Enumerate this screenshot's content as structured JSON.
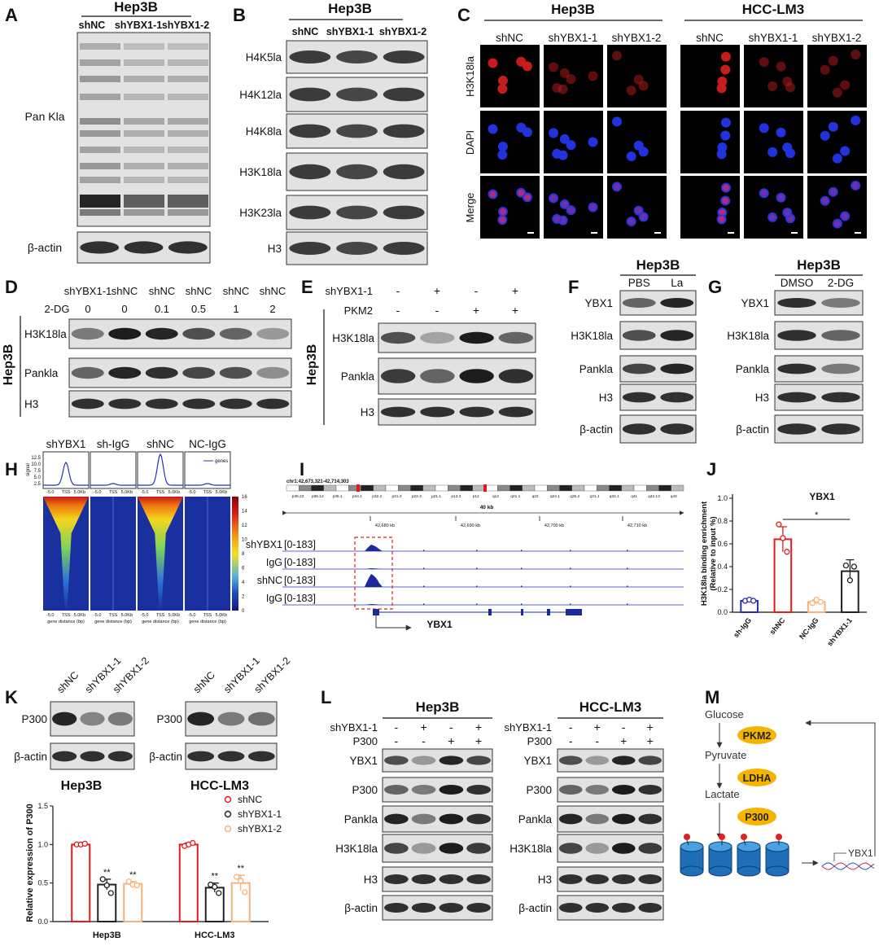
{
  "figure": {
    "A": {
      "label": "A",
      "cell": "Hep3B",
      "lanes": [
        "shNC",
        "shYBX1-1",
        "shYBX1-2"
      ],
      "rows": [
        "Pan Kla",
        "β-actin"
      ]
    },
    "B": {
      "label": "B",
      "cell": "Hep3B",
      "lanes": [
        "shNC",
        "shYBX1-1",
        "shYBX1-2"
      ],
      "rows": [
        "H4K5la",
        "H4K12la",
        "H4K8la",
        "H3K18la",
        "H3K23la",
        "H3"
      ]
    },
    "C": {
      "label": "C",
      "groups": [
        {
          "cell": "Hep3B",
          "lanes": [
            "shNC",
            "shYBX1-1",
            "shYBX1-2"
          ]
        },
        {
          "cell": "HCC-LM3",
          "lanes": [
            "shNC",
            "shYBX1-1",
            "shYBX1-2"
          ]
        }
      ],
      "rows": [
        "H3K18la",
        "DAPI",
        "Merge"
      ]
    },
    "D": {
      "label": "D",
      "side": "Hep3B",
      "conditions": [
        "shYBX1-1",
        "shNC",
        "shNC",
        "shNC",
        "shNC",
        "shNC"
      ],
      "dose_label": "2-DG",
      "doses": [
        "0",
        "0",
        "0.1",
        "0.5",
        "1",
        "2"
      ],
      "rows": [
        "H3K18la",
        "Pankla",
        "H3"
      ]
    },
    "E": {
      "label": "E",
      "side": "Hep3B",
      "treatments": [
        {
          "name": "shYBX1-1",
          "signs": [
            "-",
            "+",
            "-",
            "+"
          ]
        },
        {
          "name": "PKM2",
          "signs": [
            "-",
            "-",
            "+",
            "+"
          ]
        }
      ],
      "rows": [
        "H3K18la",
        "Pankla",
        "H3"
      ]
    },
    "F": {
      "label": "F",
      "cell": "Hep3B",
      "lanes": [
        "PBS",
        "La"
      ],
      "rows": [
        "YBX1",
        "H3K18la",
        "Pankla",
        "H3",
        "β-actin"
      ]
    },
    "G": {
      "label": "G",
      "cell": "Hep3B",
      "lanes": [
        "DMSO",
        "2-DG"
      ],
      "rows": [
        "YBX1",
        "H3K18la",
        "Pankla",
        "H3",
        "β-actin"
      ]
    },
    "H": {
      "label": "H",
      "columns": [
        "shYBX1",
        "sh-IgG",
        "shNC",
        "NC-IgG"
      ],
      "legend": "genes",
      "profile_ylabel": "signal",
      "profile_yticks": [
        "12.5",
        "10.0",
        "7.5",
        "5.0",
        "2.5"
      ],
      "xticks": [
        "-5.0",
        "TSS",
        "5.0Kb"
      ],
      "xlabel": "gene distance (bp)",
      "colorbar_ticks": [
        "16",
        "14",
        "12",
        "10",
        "8",
        "6",
        "4",
        "2",
        "0"
      ]
    },
    "I": {
      "label": "I",
      "region": "chr1:42,673,321-42,714,303",
      "cytobands": [
        "p36.23",
        "p36.12",
        "p35.1",
        "p34.1",
        "p32.2",
        "p31.2",
        "p22.3",
        "p21.1",
        "p13.3",
        "p12",
        "q12",
        "q21.1",
        "q22",
        "q24.1",
        "q25.2",
        "q31.1",
        "q32.1",
        "q41",
        "q42.13",
        "q43"
      ],
      "scale": "40 kb",
      "positions": [
        "42,680 kb",
        "42,690 kb",
        "42,700 kb",
        "42,710 kb"
      ],
      "tracks": [
        {
          "name": "shYBX1",
          "range": "[0-183]"
        },
        {
          "name": "IgG",
          "range": "[0-183]"
        },
        {
          "name": "shNC",
          "range": "[0-183]"
        },
        {
          "name": "IgG",
          "range": "[0-183]"
        }
      ],
      "gene": "YBX1"
    },
    "K": {
      "label": "K",
      "blots": [
        {
          "cell": "Hep3B",
          "lanes": [
            "shNC",
            "shYBX1-1",
            "shYBX1-2"
          ],
          "rows": [
            "P300",
            "β-actin"
          ]
        },
        {
          "cell": "HCC-LM3",
          "lanes": [
            "shNC",
            "shYBX1-1",
            "shYBX1-2"
          ],
          "rows": [
            "P300",
            "β-actin"
          ]
        }
      ]
    },
    "L": {
      "label": "L",
      "groups": [
        {
          "cell": "Hep3B",
          "treatments": [
            {
              "name": "shYBX1-1",
              "signs": [
                "-",
                "+",
                "-",
                "+"
              ]
            },
            {
              "name": "P300",
              "signs": [
                "-",
                "-",
                "+",
                "+"
              ]
            }
          ],
          "rows": [
            "YBX1",
            "P300",
            "Pankla",
            "H3K18la",
            "H3",
            "β-actin"
          ]
        },
        {
          "cell": "HCC-LM3",
          "treatments": [
            {
              "name": "shYBX1-1",
              "signs": [
                "-",
                "+",
                "-",
                "+"
              ]
            },
            {
              "name": "P300",
              "signs": [
                "-",
                "-",
                "+",
                "+"
              ]
            }
          ],
          "rows": [
            "YBX1",
            "P300",
            "Pankla",
            "H3K18la",
            "H3",
            "β-actin"
          ]
        }
      ]
    },
    "M": {
      "label": "M",
      "steps": [
        {
          "metabolite": "Glucose",
          "enzyme": "PKM2"
        },
        {
          "metabolite": "Pyruvate",
          "enzyme": "LDHA"
        },
        {
          "metabolite": "Lactate",
          "enzyme": "P300"
        }
      ],
      "gene": "YBX1"
    }
  },
  "chart_data": [
    {
      "type": "bar",
      "label": "J",
      "title": "YBX1",
      "ylabel": [
        "H3K18la binding enrichment",
        "(Relative to input %)"
      ],
      "categories": [
        "sh-IgG",
        "shNC",
        "NC-IgG",
        "shYBX1-1"
      ],
      "values": [
        0.1,
        0.64,
        0.09,
        0.36
      ],
      "errors": [
        0.01,
        0.11,
        0.02,
        0.1
      ],
      "points": [
        [
          0.1,
          0.11,
          0.1
        ],
        [
          0.77,
          0.65,
          0.53
        ],
        [
          0.08,
          0.11,
          0.09
        ],
        [
          0.41,
          0.28,
          0.4
        ]
      ],
      "colors": [
        "#2b2bb8",
        "#e41a1c",
        "#f5b27a",
        "#222222"
      ],
      "significance": "*",
      "ylim": [
        0,
        1.0
      ],
      "yticks": [
        {
          "value": 0,
          "label": "0.0"
        },
        0.2,
        0.4,
        0.6,
        0.8,
        {
          "value": 1,
          "label": "1.0"
        }
      ]
    },
    {
      "type": "bar",
      "ylabel": "Relative expression of P300",
      "categories": [
        "Hep3B",
        "HCC-LM3"
      ],
      "series": [
        {
          "name": "shNC",
          "color": "#e41a1c",
          "values": [
            1.0,
            1.0
          ],
          "errors": [
            0.01,
            0.02
          ],
          "points": [
            [
              1.0,
              1.0,
              1.01
            ],
            [
              0.98,
              1.0,
              1.02
            ]
          ]
        },
        {
          "name": "shYBX1-1",
          "color": "#222222",
          "values": [
            0.48,
            0.44
          ],
          "errors": [
            0.07,
            0.06
          ],
          "points": [
            [
              0.55,
              0.47,
              0.37
            ],
            [
              0.48,
              0.45,
              0.37
            ]
          ],
          "annotations": [
            "**",
            "**"
          ]
        },
        {
          "name": "shYBX1-2",
          "color": "#f5b27a",
          "values": [
            0.49,
            0.5
          ],
          "errors": [
            0.03,
            0.1
          ],
          "points": [
            [
              0.52,
              0.48,
              0.47
            ],
            [
              0.58,
              0.53,
              0.38
            ]
          ],
          "annotations": [
            "**",
            "**"
          ]
        }
      ],
      "ylim": [
        0,
        1.5
      ],
      "yticks": [
        {
          "value": 0,
          "label": "0.0"
        },
        0.5,
        {
          "value": 1,
          "label": "1.0"
        },
        1.5
      ],
      "legend": "upper right"
    }
  ]
}
